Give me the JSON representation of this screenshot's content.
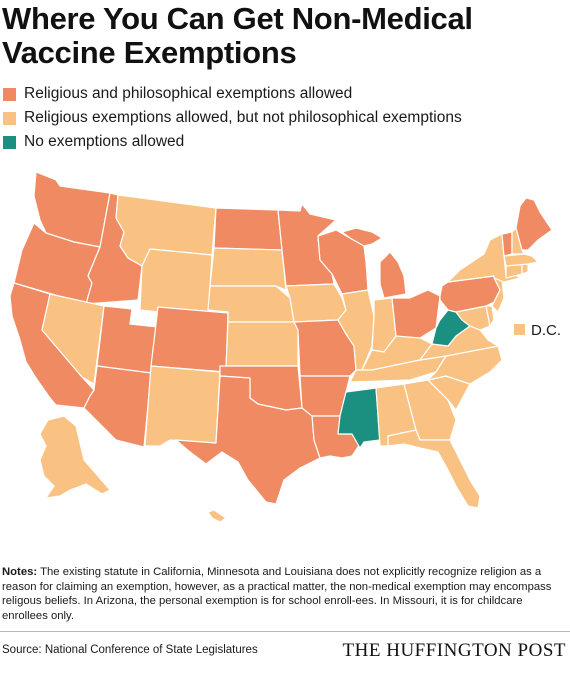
{
  "title": "Where You Can Get Non-Medical Vaccine Exemptions",
  "colors": {
    "religious_philosophical": "#ef8a62",
    "religious_only": "#f9c283",
    "none": "#1b9080"
  },
  "legend": [
    {
      "key": "religious_philosophical",
      "label": "Religious and philosophical exemptions allowed",
      "color": "#ef8a62"
    },
    {
      "key": "religious_only",
      "label": "Religious exemptions allowed, but not philosophical exemptions",
      "color": "#f9c283"
    },
    {
      "key": "none",
      "label": "No exemptions allowed",
      "color": "#1b9080"
    }
  ],
  "dc_label": "D.C.",
  "states": {
    "WA": "religious_philosophical",
    "OR": "religious_philosophical",
    "CA": "religious_philosophical",
    "ID": "religious_philosophical",
    "NV": "religious_only",
    "UT": "religious_philosophical",
    "AZ": "religious_philosophical",
    "MT": "religious_only",
    "WY": "religious_only",
    "CO": "religious_philosophical",
    "NM": "religious_only",
    "ND": "religious_philosophical",
    "SD": "religious_only",
    "NE": "religious_only",
    "KS": "religious_only",
    "OK": "religious_philosophical",
    "TX": "religious_philosophical",
    "MN": "religious_philosophical",
    "IA": "religious_only",
    "MO": "religious_philosophical",
    "AR": "religious_philosophical",
    "LA": "religious_philosophical",
    "WI": "religious_philosophical",
    "IL": "religious_only",
    "MI": "religious_philosophical",
    "IN": "religious_only",
    "OH": "religious_philosophical",
    "KY": "religious_only",
    "TN": "religious_only",
    "MS": "none",
    "AL": "religious_only",
    "GA": "religious_only",
    "FL": "religious_only",
    "SC": "religious_only",
    "NC": "religious_only",
    "VA": "religious_only",
    "WV": "none",
    "MD": "religious_only",
    "DE": "religious_only",
    "PA": "religious_philosophical",
    "NJ": "religious_only",
    "NY": "religious_only",
    "CT": "religious_only",
    "RI": "religious_only",
    "MA": "religious_only",
    "VT": "religious_philosophical",
    "NH": "religious_only",
    "ME": "religious_philosophical",
    "AK": "religious_only",
    "HI": "religious_only",
    "DC": "religious_only"
  },
  "notes_label": "Notes:",
  "notes_text": " The existing statute in California, Minnesota and Louisiana does not explicitly recognize religion as a reason for claiming an exemption, however, as a practical matter, the non-medical exemption may encompass religous beliefs. In Arizona, the personal exemption is for school enroll-ees. In Missouri, it is for childcare enrollees only.",
  "source": "Source: National Conference of State Legislatures",
  "brand": "THE HUFFINGTON POST"
}
